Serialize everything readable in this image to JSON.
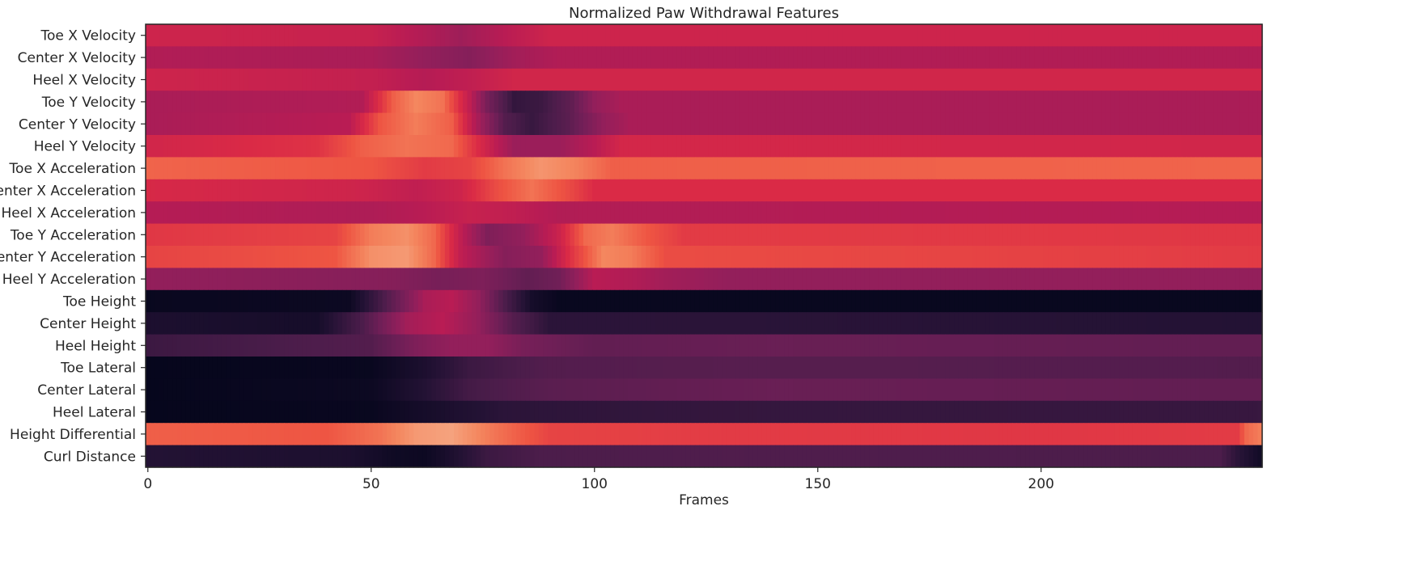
{
  "chart_data": {
    "type": "heatmap",
    "title": "Normalized Paw Withdrawal Features",
    "xlabel": "Frames",
    "ylabel": "",
    "xlim": [
      0,
      250
    ],
    "x_ticks": [
      "0",
      "50",
      "100",
      "150",
      "200"
    ],
    "x_tick_values": [
      0,
      50,
      100,
      150,
      200
    ],
    "rows": [
      "Toe X Velocity",
      "Center X Velocity",
      "Heel X Velocity",
      "Toe Y Velocity",
      "Center Y Velocity",
      "Heel Y Velocity",
      "Toe X Acceleration",
      "Center X Acceleration",
      "Heel X Acceleration",
      "Toe Y Acceleration",
      "Center Y Acceleration",
      "Heel Y Acceleration",
      "Toe Height",
      "Center Height",
      "Heel Height",
      "Toe Lateral",
      "Center Lateral",
      "Heel Lateral",
      "Height Differential",
      "Curl Distance"
    ],
    "colormap": "rocket",
    "color_range": [
      0,
      1
    ],
    "grid": false,
    "values": [
      [
        [
          0,
          0.56
        ],
        [
          50,
          0.54
        ],
        [
          62,
          0.48
        ],
        [
          70,
          0.43
        ],
        [
          80,
          0.5
        ],
        [
          90,
          0.56
        ],
        [
          249,
          0.56
        ]
      ],
      [
        [
          0,
          0.48
        ],
        [
          50,
          0.46
        ],
        [
          62,
          0.4
        ],
        [
          72,
          0.36
        ],
        [
          82,
          0.44
        ],
        [
          92,
          0.48
        ],
        [
          249,
          0.48
        ]
      ],
      [
        [
          0,
          0.56
        ],
        [
          50,
          0.53
        ],
        [
          62,
          0.49
        ],
        [
          72,
          0.52
        ],
        [
          82,
          0.57
        ],
        [
          249,
          0.57
        ]
      ],
      [
        [
          0,
          0.46
        ],
        [
          48,
          0.48
        ],
        [
          55,
          0.72
        ],
        [
          60,
          0.8
        ],
        [
          66,
          0.76
        ],
        [
          72,
          0.52
        ],
        [
          76,
          0.32
        ],
        [
          82,
          0.14
        ],
        [
          88,
          0.16
        ],
        [
          95,
          0.26
        ],
        [
          100,
          0.4
        ],
        [
          106,
          0.46
        ],
        [
          249,
          0.46
        ]
      ],
      [
        [
          0,
          0.46
        ],
        [
          45,
          0.5
        ],
        [
          52,
          0.7
        ],
        [
          60,
          0.78
        ],
        [
          68,
          0.72
        ],
        [
          74,
          0.45
        ],
        [
          80,
          0.22
        ],
        [
          86,
          0.15
        ],
        [
          94,
          0.24
        ],
        [
          102,
          0.4
        ],
        [
          108,
          0.46
        ],
        [
          249,
          0.46
        ]
      ],
      [
        [
          0,
          0.57
        ],
        [
          38,
          0.62
        ],
        [
          48,
          0.72
        ],
        [
          58,
          0.76
        ],
        [
          68,
          0.74
        ],
        [
          74,
          0.6
        ],
        [
          82,
          0.42
        ],
        [
          92,
          0.42
        ],
        [
          100,
          0.5
        ],
        [
          106,
          0.58
        ],
        [
          249,
          0.57
        ]
      ],
      [
        [
          0,
          0.73
        ],
        [
          50,
          0.7
        ],
        [
          62,
          0.64
        ],
        [
          72,
          0.66
        ],
        [
          80,
          0.76
        ],
        [
          88,
          0.83
        ],
        [
          96,
          0.79
        ],
        [
          104,
          0.72
        ],
        [
          249,
          0.73
        ]
      ],
      [
        [
          0,
          0.59
        ],
        [
          48,
          0.56
        ],
        [
          60,
          0.52
        ],
        [
          70,
          0.56
        ],
        [
          78,
          0.68
        ],
        [
          86,
          0.76
        ],
        [
          94,
          0.68
        ],
        [
          100,
          0.6
        ],
        [
          249,
          0.6
        ]
      ],
      [
        [
          0,
          0.49
        ],
        [
          50,
          0.47
        ],
        [
          62,
          0.5
        ],
        [
          72,
          0.54
        ],
        [
          82,
          0.52
        ],
        [
          92,
          0.48
        ],
        [
          249,
          0.49
        ]
      ],
      [
        [
          0,
          0.63
        ],
        [
          42,
          0.66
        ],
        [
          50,
          0.78
        ],
        [
          58,
          0.82
        ],
        [
          64,
          0.74
        ],
        [
          70,
          0.52
        ],
        [
          76,
          0.34
        ],
        [
          84,
          0.4
        ],
        [
          92,
          0.55
        ],
        [
          98,
          0.74
        ],
        [
          104,
          0.78
        ],
        [
          112,
          0.7
        ],
        [
          120,
          0.64
        ],
        [
          249,
          0.63
        ]
      ],
      [
        [
          0,
          0.66
        ],
        [
          42,
          0.7
        ],
        [
          50,
          0.82
        ],
        [
          58,
          0.84
        ],
        [
          64,
          0.74
        ],
        [
          70,
          0.52
        ],
        [
          80,
          0.36
        ],
        [
          88,
          0.4
        ],
        [
          94,
          0.6
        ],
        [
          102,
          0.8
        ],
        [
          108,
          0.78
        ],
        [
          116,
          0.68
        ],
        [
          249,
          0.64
        ]
      ],
      [
        [
          0,
          0.4
        ],
        [
          55,
          0.36
        ],
        [
          65,
          0.32
        ],
        [
          75,
          0.34
        ],
        [
          85,
          0.26
        ],
        [
          92,
          0.3
        ],
        [
          100,
          0.5
        ],
        [
          108,
          0.48
        ],
        [
          116,
          0.44
        ],
        [
          130,
          0.4
        ],
        [
          249,
          0.4
        ]
      ],
      [
        [
          0,
          0.02
        ],
        [
          45,
          0.03
        ],
        [
          52,
          0.18
        ],
        [
          58,
          0.34
        ],
        [
          62,
          0.46
        ],
        [
          68,
          0.5
        ],
        [
          74,
          0.4
        ],
        [
          80,
          0.2
        ],
        [
          86,
          0.06
        ],
        [
          92,
          0.02
        ],
        [
          249,
          0.02
        ]
      ],
      [
        [
          0,
          0.08
        ],
        [
          38,
          0.06
        ],
        [
          48,
          0.2
        ],
        [
          58,
          0.44
        ],
        [
          66,
          0.5
        ],
        [
          74,
          0.4
        ],
        [
          82,
          0.22
        ],
        [
          90,
          0.12
        ],
        [
          110,
          0.12
        ],
        [
          249,
          0.1
        ]
      ],
      [
        [
          0,
          0.16
        ],
        [
          50,
          0.22
        ],
        [
          60,
          0.34
        ],
        [
          68,
          0.4
        ],
        [
          76,
          0.4
        ],
        [
          84,
          0.32
        ],
        [
          100,
          0.26
        ],
        [
          140,
          0.28
        ],
        [
          249,
          0.26
        ]
      ],
      [
        [
          0,
          0.01
        ],
        [
          50,
          0.02
        ],
        [
          62,
          0.08
        ],
        [
          72,
          0.16
        ],
        [
          90,
          0.22
        ],
        [
          130,
          0.23
        ],
        [
          249,
          0.22
        ]
      ],
      [
        [
          0,
          0.01
        ],
        [
          50,
          0.03
        ],
        [
          62,
          0.1
        ],
        [
          72,
          0.18
        ],
        [
          90,
          0.24
        ],
        [
          140,
          0.28
        ],
        [
          249,
          0.26
        ]
      ],
      [
        [
          0,
          0.01
        ],
        [
          50,
          0.02
        ],
        [
          62,
          0.06
        ],
        [
          80,
          0.12
        ],
        [
          120,
          0.14
        ],
        [
          249,
          0.15
        ]
      ],
      [
        [
          0,
          0.72
        ],
        [
          40,
          0.7
        ],
        [
          52,
          0.76
        ],
        [
          60,
          0.84
        ],
        [
          68,
          0.86
        ],
        [
          78,
          0.76
        ],
        [
          90,
          0.66
        ],
        [
          130,
          0.64
        ],
        [
          200,
          0.63
        ],
        [
          244,
          0.64
        ],
        [
          246,
          0.74
        ],
        [
          249,
          0.78
        ]
      ],
      [
        [
          0,
          0.1
        ],
        [
          45,
          0.08
        ],
        [
          55,
          0.04
        ],
        [
          62,
          0.03
        ],
        [
          68,
          0.08
        ],
        [
          76,
          0.16
        ],
        [
          88,
          0.2
        ],
        [
          130,
          0.21
        ],
        [
          240,
          0.2
        ],
        [
          244,
          0.12
        ],
        [
          249,
          0.05
        ]
      ]
    ]
  }
}
